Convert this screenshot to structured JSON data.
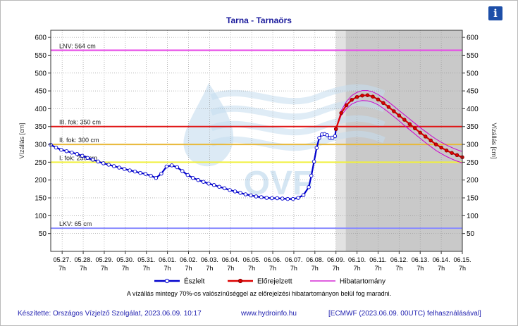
{
  "page": {
    "title": "Tarna - Tarnaörs",
    "info_icon": "info-icon",
    "info_glyph": "i",
    "note": "A vízállás mintegy 70%-os valószínűséggel az előrejelzési hibatartományon belül fog maradni.",
    "footer": {
      "author": "Készítette: Országos Vízjelző Szolgálat, 2023.06.09. 10:17",
      "website": "www.hydroinfo.hu",
      "model": "[ECMWF (2023.06.09. 00UTC) felhasználásával]"
    },
    "watermark": "OVF"
  },
  "chart_data": {
    "type": "line",
    "title": "Tarna - Tarnaörs",
    "ylabel": "Vízállás [cm]",
    "ylabel_right": "Vízállás [cm]",
    "ylim": [
      0,
      620
    ],
    "yticks": [
      50,
      100,
      150,
      200,
      250,
      300,
      350,
      400,
      450,
      500,
      550,
      600
    ],
    "x_domain": [
      "05.26. 18h",
      "06.15. 7h"
    ],
    "xticks": [
      {
        "date": "05.27.",
        "hour": "7h"
      },
      {
        "date": "05.28.",
        "hour": "7h"
      },
      {
        "date": "05.29.",
        "hour": "7h"
      },
      {
        "date": "05.30.",
        "hour": "7h"
      },
      {
        "date": "05.31.",
        "hour": "7h"
      },
      {
        "date": "06.01.",
        "hour": "7h"
      },
      {
        "date": "06.02.",
        "hour": "7h"
      },
      {
        "date": "06.03.",
        "hour": "7h"
      },
      {
        "date": "06.04.",
        "hour": "7h"
      },
      {
        "date": "06.05.",
        "hour": "7h"
      },
      {
        "date": "06.06.",
        "hour": "7h"
      },
      {
        "date": "06.07.",
        "hour": "7h"
      },
      {
        "date": "06.08.",
        "hour": "7h"
      },
      {
        "date": "06.09.",
        "hour": "7h"
      },
      {
        "date": "06.10.",
        "hour": "7h"
      },
      {
        "date": "06.11.",
        "hour": "7h"
      },
      {
        "date": "06.12.",
        "hour": "7h"
      },
      {
        "date": "06.13.",
        "hour": "7h"
      },
      {
        "date": "06.14.",
        "hour": "7h"
      },
      {
        "date": "06.15.",
        "hour": "7h"
      }
    ],
    "forecast_start": "06.09. 7h",
    "reference_lines": [
      {
        "label": "LNV: 564 cm",
        "value": 564,
        "color": "#e64ce6"
      },
      {
        "label": "III. fok: 350 cm",
        "value": 350,
        "color": "#e01414"
      },
      {
        "label": "II. fok: 300 cm",
        "value": 300,
        "color": "#e8b93a"
      },
      {
        "label": "I. fok: 250 cm",
        "value": 250,
        "color": "#f0f03c"
      },
      {
        "label": "LKV: 65 cm",
        "value": 65,
        "color": "#8a8cff"
      }
    ],
    "legend": {
      "position": "bottom",
      "entries": [
        {
          "name": "Észlelt",
          "color": "#0000cc",
          "marker": true
        },
        {
          "name": "Előrejelzett",
          "color": "#dd0000",
          "marker": true
        },
        {
          "name": "Hibatartomány",
          "color": "#cc00cc",
          "marker": false
        }
      ]
    },
    "series": [
      {
        "name": "Észlelt",
        "color": "#0000cc",
        "points": [
          [
            "05.26. 18h",
            299
          ],
          [
            "05.27. 0h",
            291
          ],
          [
            "05.27. 6h",
            285
          ],
          [
            "05.27. 12h",
            281
          ],
          [
            "05.27. 18h",
            277
          ],
          [
            "05.28. 0h",
            273
          ],
          [
            "05.28. 6h",
            268
          ],
          [
            "05.28. 12h",
            262
          ],
          [
            "05.28. 18h",
            257
          ],
          [
            "05.29. 0h",
            252
          ],
          [
            "05.29. 6h",
            247
          ],
          [
            "05.29. 12h",
            243
          ],
          [
            "05.29. 18h",
            239
          ],
          [
            "05.30. 0h",
            235
          ],
          [
            "05.30. 6h",
            231
          ],
          [
            "05.30. 12h",
            227
          ],
          [
            "05.30. 18h",
            224
          ],
          [
            "05.31. 0h",
            220
          ],
          [
            "05.31. 6h",
            217
          ],
          [
            "05.31. 12h",
            212
          ],
          [
            "05.31. 18h",
            206
          ],
          [
            "06.01. 0h",
            218
          ],
          [
            "06.01. 6h",
            238
          ],
          [
            "06.01. 12h",
            241
          ],
          [
            "06.01. 18h",
            236
          ],
          [
            "06.02. 0h",
            225
          ],
          [
            "06.02. 6h",
            214
          ],
          [
            "06.02. 12h",
            206
          ],
          [
            "06.02. 18h",
            200
          ],
          [
            "06.03. 0h",
            195
          ],
          [
            "06.03. 6h",
            190
          ],
          [
            "06.03. 12h",
            186
          ],
          [
            "06.03. 18h",
            181
          ],
          [
            "06.04. 0h",
            177
          ],
          [
            "06.04. 6h",
            172
          ],
          [
            "06.04. 12h",
            168
          ],
          [
            "06.04. 18h",
            164
          ],
          [
            "06.05. 0h",
            160
          ],
          [
            "06.05. 6h",
            157
          ],
          [
            "06.05. 12h",
            154
          ],
          [
            "06.05. 18h",
            152
          ],
          [
            "06.06. 0h",
            150
          ],
          [
            "06.06. 6h",
            149
          ],
          [
            "06.06. 12h",
            149
          ],
          [
            "06.06. 18h",
            148
          ],
          [
            "06.07. 0h",
            147
          ],
          [
            "06.07. 6h",
            147
          ],
          [
            "06.07. 12h",
            150
          ],
          [
            "06.07. 18h",
            158
          ],
          [
            "06.08. 0h",
            180
          ],
          [
            "06.08. 3h",
            212
          ],
          [
            "06.08. 6h",
            252
          ],
          [
            "06.08. 9h",
            290
          ],
          [
            "06.08. 12h",
            318
          ],
          [
            "06.08. 15h",
            328
          ],
          [
            "06.08. 18h",
            329
          ],
          [
            "06.08. 21h",
            326
          ],
          [
            "06.09. 0h",
            318
          ],
          [
            "06.09. 3h",
            318
          ],
          [
            "06.09. 6h",
            323
          ],
          [
            "06.09. 7h",
            343
          ]
        ]
      },
      {
        "name": "Előrejelzett",
        "color": "#dd0000",
        "points": [
          [
            "06.09. 7h",
            343
          ],
          [
            "06.09. 13h",
            388
          ],
          [
            "06.09. 19h",
            410
          ],
          [
            "06.10. 1h",
            425
          ],
          [
            "06.10. 7h",
            433
          ],
          [
            "06.10. 13h",
            437
          ],
          [
            "06.10. 19h",
            438
          ],
          [
            "06.11. 1h",
            434
          ],
          [
            "06.11. 7h",
            426
          ],
          [
            "06.11. 13h",
            416
          ],
          [
            "06.11. 19h",
            405
          ],
          [
            "06.12. 1h",
            393
          ],
          [
            "06.12. 7h",
            381
          ],
          [
            "06.12. 13h",
            369
          ],
          [
            "06.12. 19h",
            357
          ],
          [
            "06.13. 1h",
            345
          ],
          [
            "06.13. 7h",
            333
          ],
          [
            "06.13. 13h",
            322
          ],
          [
            "06.13. 19h",
            311
          ],
          [
            "06.14. 1h",
            300
          ],
          [
            "06.14. 7h",
            291
          ],
          [
            "06.14. 13h",
            283
          ],
          [
            "06.14. 19h",
            276
          ],
          [
            "06.15. 1h",
            270
          ],
          [
            "06.15. 7h",
            264
          ]
        ]
      },
      {
        "name": "Hibatartomány",
        "color": "#cc00cc",
        "upper": [
          [
            "06.09. 7h",
            343
          ],
          [
            "06.09. 13h",
            395
          ],
          [
            "06.09. 19h",
            420
          ],
          [
            "06.10. 1h",
            437
          ],
          [
            "06.10. 7h",
            446
          ],
          [
            "06.10. 13h",
            451
          ],
          [
            "06.10. 19h",
            451
          ],
          [
            "06.11. 1h",
            447
          ],
          [
            "06.11. 7h",
            440
          ],
          [
            "06.11. 13h",
            430
          ],
          [
            "06.11. 19h",
            419
          ],
          [
            "06.12. 1h",
            407
          ],
          [
            "06.12. 7h",
            395
          ],
          [
            "06.12. 13h",
            383
          ],
          [
            "06.12. 19h",
            371
          ],
          [
            "06.13. 1h",
            359
          ],
          [
            "06.13. 7h",
            347
          ],
          [
            "06.13. 13h",
            336
          ],
          [
            "06.13. 19h",
            325
          ],
          [
            "06.14. 1h",
            315
          ],
          [
            "06.14. 7h",
            306
          ],
          [
            "06.14. 13h",
            298
          ],
          [
            "06.14. 19h",
            291
          ],
          [
            "06.15. 1h",
            285
          ],
          [
            "06.15. 7h",
            280
          ]
        ],
        "lower": [
          [
            "06.09. 7h",
            343
          ],
          [
            "06.09. 13h",
            381
          ],
          [
            "06.09. 19h",
            400
          ],
          [
            "06.10. 1h",
            413
          ],
          [
            "06.10. 7h",
            420
          ],
          [
            "06.10. 13h",
            423
          ],
          [
            "06.10. 19h",
            422
          ],
          [
            "06.11. 1h",
            418
          ],
          [
            "06.11. 7h",
            411
          ],
          [
            "06.11. 13h",
            401
          ],
          [
            "06.11. 19h",
            390
          ],
          [
            "06.12. 1h",
            378
          ],
          [
            "06.12. 7h",
            366
          ],
          [
            "06.12. 13h",
            353
          ],
          [
            "06.12. 19h",
            341
          ],
          [
            "06.13. 1h",
            329
          ],
          [
            "06.13. 7h",
            317
          ],
          [
            "06.13. 13h",
            305
          ],
          [
            "06.13. 19h",
            294
          ],
          [
            "06.14. 1h",
            283
          ],
          [
            "06.14. 7h",
            274
          ],
          [
            "06.14. 13h",
            266
          ],
          [
            "06.14. 19h",
            259
          ],
          [
            "06.15. 1h",
            253
          ],
          [
            "06.15. 7h",
            248
          ]
        ]
      }
    ]
  }
}
